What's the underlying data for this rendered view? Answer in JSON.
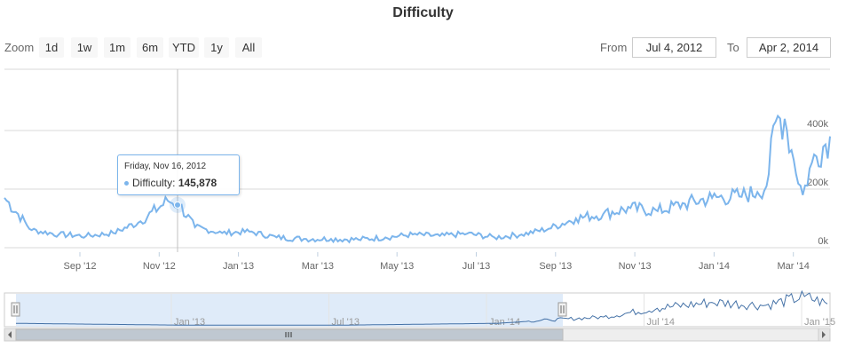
{
  "title": "Difficulty",
  "range_selector": {
    "zoom_label": "Zoom",
    "buttons": [
      "1d",
      "1w",
      "1m",
      "6m",
      "YTD",
      "1y",
      "All"
    ],
    "from_label": "From",
    "from_value": "Jul 4, 2012",
    "to_label": "To",
    "to_value": "Apr 2, 2014"
  },
  "tooltip": {
    "date": "Friday, Nov 16, 2012",
    "series": "Difficulty:",
    "value": "145,878"
  },
  "colors": {
    "series": "#7cb5ec",
    "navigator_line": "#4572a7",
    "navigator_mask": "#d9e7f8",
    "grid": "#d8d8d8"
  },
  "chart_data": {
    "type": "line",
    "title": "Difficulty",
    "series": [
      {
        "name": "Difficulty",
        "x": [
          "2012-07-04",
          "2012-07-25",
          "2012-08-15",
          "2012-09-05",
          "2012-09-26",
          "2012-10-17",
          "2012-11-07",
          "2012-11-16",
          "2012-11-28",
          "2012-12-19",
          "2013-01-09",
          "2013-01-30",
          "2013-02-20",
          "2013-03-13",
          "2013-04-03",
          "2013-04-24",
          "2013-05-15",
          "2013-06-05",
          "2013-06-26",
          "2013-07-17",
          "2013-08-07",
          "2013-08-28",
          "2013-09-18",
          "2013-10-09",
          "2013-10-30",
          "2013-11-20",
          "2013-12-11",
          "2014-01-01",
          "2014-01-22",
          "2014-02-05",
          "2014-02-12",
          "2014-02-19",
          "2014-02-26",
          "2014-03-05",
          "2014-03-12",
          "2014-03-19",
          "2014-04-02"
        ],
        "y": [
          170000,
          60000,
          45000,
          40000,
          50000,
          90000,
          160000,
          145878,
          70000,
          50000,
          55000,
          35000,
          30000,
          30000,
          28000,
          35000,
          45000,
          40000,
          48000,
          35000,
          45000,
          65000,
          100000,
          115000,
          135000,
          125000,
          150000,
          170000,
          175000,
          190000,
          210000,
          430000,
          440000,
          300000,
          180000,
          290000,
          380000
        ]
      }
    ],
    "xlabel": "",
    "ylabel": "",
    "x_ticks": [
      "Sep '12",
      "Nov '12",
      "Jan '13",
      "Mar '13",
      "May '13",
      "Jul '13",
      "Sep '13",
      "Nov '13",
      "Jan '14",
      "Mar '14"
    ],
    "y_ticks": [
      "0k",
      "200k",
      "400k"
    ],
    "ylim": [
      0,
      400000
    ],
    "xlim": [
      "2012-07-04",
      "2014-04-02"
    ],
    "grid": true,
    "navigator": {
      "x_ticks": [
        "Jan '13",
        "Jul '13",
        "Jan '14",
        "Jul '14",
        "Jan '15"
      ],
      "selected_from": "Jul 4, 2012",
      "selected_to": "Apr 2, 2014",
      "full_series": [
        {
          "x": "2012-07-04",
          "y": 170000
        },
        {
          "x": "2013-01-01",
          "y": 50000
        },
        {
          "x": "2013-07-01",
          "y": 40000
        },
        {
          "x": "2014-01-01",
          "y": 170000
        },
        {
          "x": "2014-03-01",
          "y": 400000
        },
        {
          "x": "2014-05-01",
          "y": 600000
        },
        {
          "x": "2014-07-01",
          "y": 1200000
        },
        {
          "x": "2014-09-01",
          "y": 1600000
        },
        {
          "x": "2014-11-01",
          "y": 1400000
        },
        {
          "x": "2014-12-15",
          "y": 2000000
        },
        {
          "x": "2015-01-10",
          "y": 1500000
        }
      ]
    }
  }
}
